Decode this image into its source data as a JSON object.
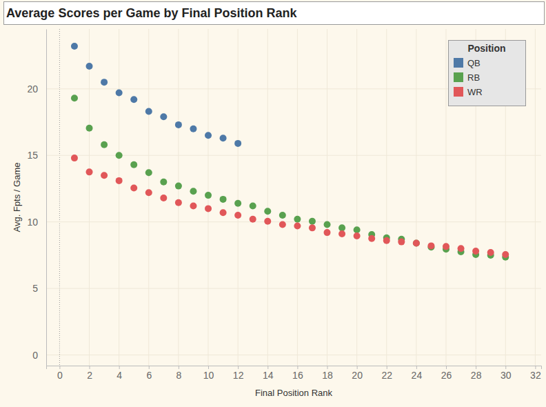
{
  "chart_data": {
    "type": "scatter",
    "title": "Average Scores per Game by Final Position Rank",
    "x_label": "Final Position Rank",
    "y_label": "Avg. Fpts / Game",
    "legend_title": "Position",
    "legend": "upper right",
    "grid": true,
    "marker": "circle",
    "x": [
      1,
      2,
      3,
      4,
      5,
      6,
      7,
      8,
      9,
      10,
      11,
      12,
      13,
      14,
      15,
      16,
      17,
      18,
      19,
      20,
      21,
      22,
      23,
      24,
      25,
      26,
      27,
      28,
      29,
      30
    ],
    "xlim": [
      -0.9,
      32.4
    ],
    "xticks": [
      0,
      2,
      4,
      6,
      8,
      10,
      12,
      14,
      16,
      18,
      20,
      22,
      24,
      26,
      28,
      30,
      32
    ],
    "ylim": [
      -0.8,
      24.5
    ],
    "yticks": [
      0,
      5,
      10,
      15,
      20
    ],
    "series": [
      {
        "name": "QB",
        "color": "#4e79a7",
        "values": [
          23.2,
          21.7,
          20.5,
          19.7,
          19.2,
          18.3,
          17.9,
          17.3,
          17.0,
          16.5,
          16.3,
          15.9,
          null,
          null,
          null,
          null,
          null,
          null,
          null,
          null,
          null,
          null,
          null,
          null,
          null,
          null,
          null,
          null,
          null,
          null
        ]
      },
      {
        "name": "RB",
        "color": "#59a14f",
        "values": [
          19.3,
          17.05,
          15.8,
          15.0,
          14.3,
          13.7,
          13.0,
          12.7,
          12.3,
          12.0,
          11.7,
          11.4,
          11.2,
          10.8,
          10.5,
          10.2,
          10.05,
          9.8,
          9.55,
          9.4,
          9.05,
          8.8,
          8.7,
          8.4,
          8.1,
          7.95,
          7.75,
          7.55,
          7.5,
          7.35
        ]
      },
      {
        "name": "WR",
        "color": "#e15759",
        "values": [
          14.8,
          13.75,
          13.5,
          13.1,
          12.55,
          12.2,
          11.8,
          11.45,
          11.2,
          11.0,
          10.7,
          10.5,
          10.2,
          10.05,
          9.8,
          9.7,
          9.55,
          9.2,
          9.1,
          8.95,
          8.75,
          8.6,
          8.5,
          8.4,
          8.2,
          8.15,
          8.0,
          7.8,
          7.7,
          7.55
        ]
      }
    ]
  }
}
